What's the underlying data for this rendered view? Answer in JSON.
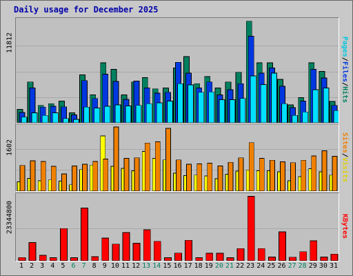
{
  "title": "Daily usage for December 2025",
  "colors": {
    "hits": "#00805f",
    "files": "#0038e0",
    "pages": "#00e0ff",
    "visits": "#f08000",
    "sites": "#ffff00",
    "kbytes": "#ff0000",
    "weekday": "#000000",
    "weekend": "#00805f"
  },
  "chart_data": [
    {
      "type": "bar",
      "title": "",
      "ylabel": "Pages / Files / Hits",
      "ymax_label": "11812",
      "ylim": [
        0,
        11812
      ],
      "categories": [
        "1",
        "2",
        "3",
        "4",
        "5",
        "6",
        "7",
        "8",
        "9",
        "10",
        "11",
        "12",
        "13",
        "14",
        "15",
        "16",
        "17",
        "18",
        "19",
        "20",
        "21",
        "22",
        "23",
        "24",
        "25",
        "26",
        "27",
        "28",
        "29",
        "30",
        "31"
      ],
      "series": [
        {
          "name": "Hits",
          "values": [
            1550,
            4700,
            2000,
            2200,
            2500,
            1150,
            5500,
            3200,
            6900,
            6150,
            3200,
            4700,
            5200,
            3900,
            4000,
            6300,
            7600,
            4500,
            5300,
            4000,
            4700,
            5800,
            11670,
            6900,
            6900,
            5000,
            2050,
            2900,
            6900,
            5900,
            2450
          ]
        },
        {
          "name": "Files",
          "values": [
            1200,
            4000,
            1800,
            1900,
            1850,
            900,
            4850,
            2800,
            5600,
            4750,
            2700,
            4800,
            4000,
            3400,
            3500,
            6950,
            5700,
            4000,
            4700,
            3200,
            3800,
            4500,
            9950,
            5700,
            6300,
            4200,
            1750,
            2500,
            6150,
            5150,
            2000
          ]
        },
        {
          "name": "Pages",
          "values": [
            650,
            1150,
            850,
            1150,
            500,
            400,
            1800,
            1700,
            1900,
            2050,
            1950,
            2000,
            2200,
            2300,
            2500,
            4500,
            4350,
            3500,
            3550,
            2650,
            2650,
            2800,
            5400,
            4400,
            5700,
            2200,
            850,
            1250,
            3800,
            4000,
            1400
          ]
        }
      ]
    },
    {
      "type": "bar",
      "title": "",
      "ylabel": "Sites / Visits",
      "ymax_label": "1602",
      "ylim": [
        0,
        1602
      ],
      "categories": [
        "1",
        "2",
        "3",
        "4",
        "5",
        "6",
        "7",
        "8",
        "9",
        "10",
        "11",
        "12",
        "13",
        "14",
        "15",
        "16",
        "17",
        "18",
        "19",
        "20",
        "21",
        "22",
        "23",
        "24",
        "25",
        "26",
        "27",
        "28",
        "29",
        "30",
        "31"
      ],
      "series": [
        {
          "name": "Visits",
          "values": [
            640,
            760,
            740,
            620,
            430,
            630,
            670,
            740,
            800,
            1602,
            820,
            830,
            1200,
            1230,
            1570,
            780,
            670,
            680,
            700,
            630,
            720,
            830,
            1210,
            820,
            770,
            730,
            710,
            770,
            880,
            1010,
            870
          ]
        },
        {
          "name": "Sites",
          "values": [
            230,
            320,
            260,
            280,
            250,
            160,
            540,
            650,
            1380,
            620,
            570,
            510,
            990,
            820,
            780,
            450,
            390,
            400,
            380,
            310,
            420,
            500,
            520,
            510,
            510,
            480,
            260,
            360,
            560,
            480,
            400
          ]
        }
      ]
    },
    {
      "type": "bar",
      "title": "",
      "ylabel": "KBytes",
      "ymax_label": "23344800",
      "ylim": [
        0,
        23344800
      ],
      "categories": [
        "1",
        "2",
        "3",
        "4",
        "5",
        "6",
        "7",
        "8",
        "9",
        "10",
        "11",
        "12",
        "13",
        "14",
        "15",
        "16",
        "17",
        "18",
        "19",
        "20",
        "21",
        "22",
        "23",
        "24",
        "25",
        "26",
        "27",
        "28",
        "29",
        "30",
        "31"
      ],
      "series": [
        {
          "name": "KBytes",
          "values": [
            1200000,
            6600000,
            2000000,
            1100000,
            11600000,
            1100000,
            19000000,
            1500000,
            8200000,
            6000000,
            10200000,
            6300000,
            11200000,
            7000000,
            1100000,
            2800000,
            7400000,
            1100000,
            2700000,
            2700000,
            1100000,
            4400000,
            23200000,
            4400000,
            1400000,
            10400000,
            1300000,
            3300000,
            7200000,
            1400000,
            2400000
          ]
        }
      ]
    }
  ],
  "x_labels": [
    {
      "label": "1",
      "weekend": false
    },
    {
      "label": "2",
      "weekend": false
    },
    {
      "label": "3",
      "weekend": false
    },
    {
      "label": "4",
      "weekend": false
    },
    {
      "label": "5",
      "weekend": false
    },
    {
      "label": "6",
      "weekend": true
    },
    {
      "label": "7",
      "weekend": true
    },
    {
      "label": "8",
      "weekend": false
    },
    {
      "label": "9",
      "weekend": false
    },
    {
      "label": "10",
      "weekend": false
    },
    {
      "label": "11",
      "weekend": false
    },
    {
      "label": "12",
      "weekend": false
    },
    {
      "label": "13",
      "weekend": true
    },
    {
      "label": "14",
      "weekend": true
    },
    {
      "label": "15",
      "weekend": false
    },
    {
      "label": "16",
      "weekend": false
    },
    {
      "label": "17",
      "weekend": false
    },
    {
      "label": "18",
      "weekend": false
    },
    {
      "label": "19",
      "weekend": false
    },
    {
      "label": "20",
      "weekend": true
    },
    {
      "label": "21",
      "weekend": true
    },
    {
      "label": "22",
      "weekend": false
    },
    {
      "label": "23",
      "weekend": false
    },
    {
      "label": "24",
      "weekend": false
    },
    {
      "label": "25",
      "weekend": false
    },
    {
      "label": "26",
      "weekend": false
    },
    {
      "label": "27",
      "weekend": true
    },
    {
      "label": "28",
      "weekend": true
    },
    {
      "label": "29",
      "weekend": false
    },
    {
      "label": "30",
      "weekend": false
    },
    {
      "label": "31",
      "weekend": false
    }
  ],
  "labels": {
    "pages": "Pages",
    "files": "Files",
    "hits": "Hits",
    "sites": "Sites",
    "visits": "Visits",
    "kbytes": "KBytes",
    "slash": "/"
  }
}
